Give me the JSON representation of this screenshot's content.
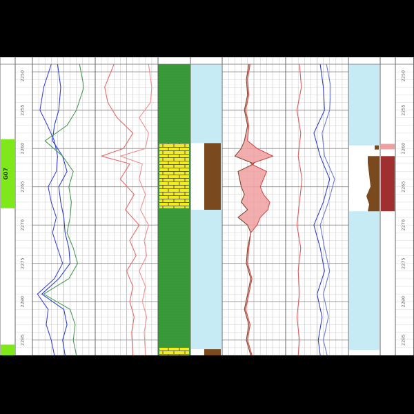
{
  "chart_data": {
    "type": "line",
    "title": "",
    "depth_ticks": [
      "2250",
      "2255",
      "2260",
      "2265",
      "2270",
      "2275",
      "2280",
      "2285"
    ],
    "depth_range": [
      2249,
      2287
    ],
    "formation": {
      "label": "G07",
      "color": "#7ee81a"
    },
    "tracks": [
      {
        "name": "track-1",
        "xlim": [
          0,
          100
        ],
        "scale_labels": [
          "",
          "",
          "",
          ""
        ],
        "series": [
          {
            "color": "#3d45d6",
            "depth": [
              2249,
              2252,
              2255,
              2257,
              2259,
              2261,
              2263,
              2265,
              2267,
              2269,
              2271,
              2273,
              2275,
              2277,
              2279,
              2281,
              2283,
              2285,
              2287
            ],
            "values": [
              30,
              18,
              12,
              24,
              35,
              40,
              38,
              25,
              30,
              38,
              32,
              40,
              48,
              35,
              8,
              25,
              22,
              30,
              35
            ]
          },
          {
            "color": "#2a3fd0",
            "depth": [
              2249,
              2252,
              2255,
              2257,
              2259,
              2261,
              2263,
              2265,
              2267,
              2269,
              2271,
              2273,
              2275,
              2277,
              2279,
              2281,
              2283,
              2285,
              2287
            ],
            "values": [
              40,
              45,
              42,
              35,
              32,
              48,
              55,
              42,
              45,
              50,
              52,
              58,
              60,
              42,
              15,
              50,
              55,
              48,
              52
            ]
          },
          {
            "color": "#4a9a5a",
            "depth": [
              2249,
              2252,
              2255,
              2257,
              2259,
              2261,
              2263,
              2265,
              2267,
              2269,
              2271,
              2273,
              2275,
              2277,
              2279,
              2281,
              2283,
              2285,
              2287
            ],
            "values": [
              75,
              82,
              70,
              55,
              20,
              48,
              65,
              58,
              62,
              60,
              55,
              65,
              72,
              58,
              18,
              60,
              68,
              65,
              70
            ]
          }
        ]
      },
      {
        "name": "track-2",
        "xlim": [
          0,
          100
        ],
        "scale_labels": [
          "",
          "",
          "",
          ""
        ],
        "series": [
          {
            "color": "#e86a6a",
            "depth": [
              2249,
              2252,
              2254,
              2256,
              2258,
              2260,
              2261,
              2262,
              2264,
              2266,
              2268,
              2270,
              2272,
              2274,
              2276,
              2278,
              2280,
              2282,
              2284,
              2287
            ],
            "values": [
              30,
              15,
              20,
              35,
              60,
              45,
              10,
              55,
              40,
              62,
              48,
              70,
              55,
              65,
              50,
              60,
              55,
              62,
              58,
              60
            ]
          },
          {
            "color": "#f09090",
            "depth": [
              2249,
              2252,
              2254,
              2256,
              2258,
              2260,
              2261,
              2262,
              2264,
              2266,
              2268,
              2270,
              2272,
              2274,
              2276,
              2278,
              2280,
              2282,
              2284,
              2287
            ],
            "values": [
              85,
              90,
              88,
              70,
              85,
              80,
              40,
              75,
              70,
              80,
              72,
              85,
              78,
              82,
              70,
              80,
              75,
              82,
              78,
              80
            ]
          }
        ]
      },
      {
        "name": "lithology",
        "type": "column"
      },
      {
        "name": "column-4",
        "type": "column"
      },
      {
        "name": "track-5",
        "xlim": [
          0,
          100
        ],
        "scale_labels": [
          "",
          "",
          "",
          ""
        ],
        "series": [
          {
            "color": "#7a4a2a",
            "depth": [
              2249,
              2251,
              2253,
              2255,
              2257,
              2259,
              2260,
              2261,
              2262,
              2263,
              2265,
              2266,
              2267,
              2268,
              2269,
              2270,
              2271,
              2273,
              2275,
              2277,
              2279,
              2281,
              2283,
              2285,
              2287
            ],
            "values": [
              42,
              38,
              40,
              35,
              40,
              35,
              30,
              20,
              50,
              25,
              30,
              35,
              30,
              40,
              25,
              40,
              45,
              40,
              38,
              45,
              40,
              35,
              42,
              38,
              45
            ]
          },
          {
            "color": "#d24a4a",
            "depth": [
              2249,
              2251,
              2253,
              2255,
              2257,
              2259,
              2260,
              2261,
              2262,
              2263,
              2265,
              2266,
              2267,
              2268,
              2269,
              2270,
              2271,
              2273,
              2275,
              2277,
              2279,
              2281,
              2283,
              2285,
              2287
            ],
            "values": [
              44,
              40,
              42,
              37,
              42,
              40,
              55,
              80,
              45,
              70,
              60,
              65,
              75,
              72,
              60,
              55,
              45,
              42,
              40,
              47,
              42,
              37,
              44,
              40,
              47
            ]
          }
        ]
      },
      {
        "name": "track-6",
        "xlim": [
          0,
          100
        ],
        "scale_labels": [
          "",
          "",
          "",
          ""
        ],
        "series": [
          {
            "color": "#e05a5a",
            "depth": [
              2249,
              2252,
              2255,
              2258,
              2261,
              2264,
              2267,
              2270,
              2273,
              2276,
              2279,
              2282,
              2285,
              2287
            ],
            "values": [
              22,
              25,
              18,
              24,
              20,
              26,
              22,
              18,
              24,
              20,
              22,
              18,
              22,
              20
            ]
          },
          {
            "color": "#3040c8",
            "depth": [
              2249,
              2252,
              2255,
              2258,
              2261,
              2264,
              2267,
              2270,
              2273,
              2276,
              2279,
              2282,
              2285,
              2287
            ],
            "values": [
              55,
              60,
              62,
              45,
              55,
              70,
              60,
              45,
              55,
              62,
              50,
              58,
              52,
              55
            ]
          },
          {
            "color": "#6a78d8",
            "depth": [
              2249,
              2252,
              2255,
              2258,
              2261,
              2264,
              2267,
              2270,
              2273,
              2276,
              2279,
              2282,
              2285,
              2287
            ],
            "values": [
              65,
              72,
              70,
              58,
              62,
              78,
              68,
              55,
              62,
              70,
              60,
              68,
              60,
              66
            ]
          }
        ]
      },
      {
        "name": "column-7",
        "type": "column"
      }
    ],
    "grid": true,
    "colors": {
      "lithology_green": "#3a9a3a",
      "sandstone_yellow": "#f2ee1e",
      "light_blue": "#c6ebf5",
      "brown": "#7a4a1e",
      "dark_red": "#a03030",
      "fill_red": "#f0a0a0"
    }
  }
}
